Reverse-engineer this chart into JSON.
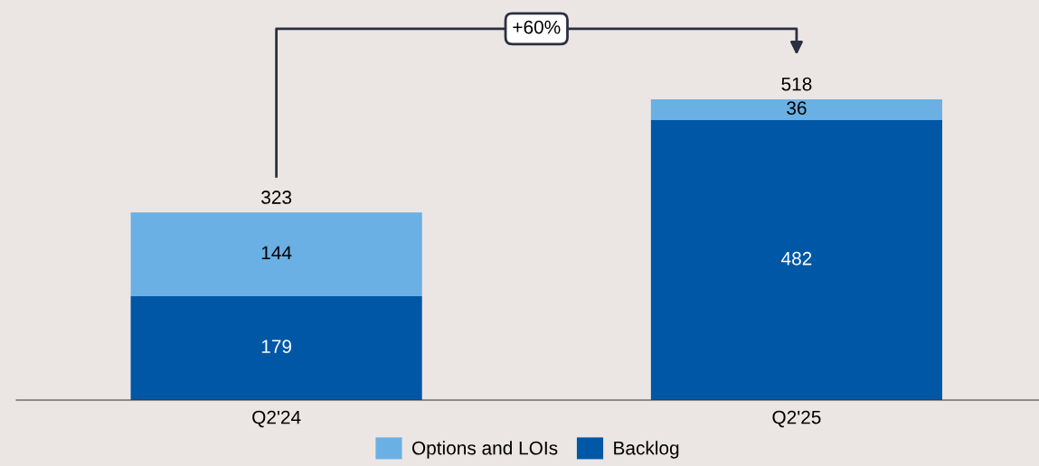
{
  "chart_data": {
    "type": "bar",
    "stacked": true,
    "categories": [
      "Q2'24",
      "Q2'25"
    ],
    "series": [
      {
        "name": "Backlog",
        "color": "#0057a6",
        "values": [
          179,
          482
        ]
      },
      {
        "name": "Options and LOIs",
        "color": "#6ab0e4",
        "values": [
          144,
          36
        ]
      }
    ],
    "data_labels": true,
    "totals": [
      "323",
      "518"
    ],
    "annotations": [
      "+60%"
    ],
    "legend": "bottom",
    "grid": false,
    "tick_labels": "x"
  }
}
